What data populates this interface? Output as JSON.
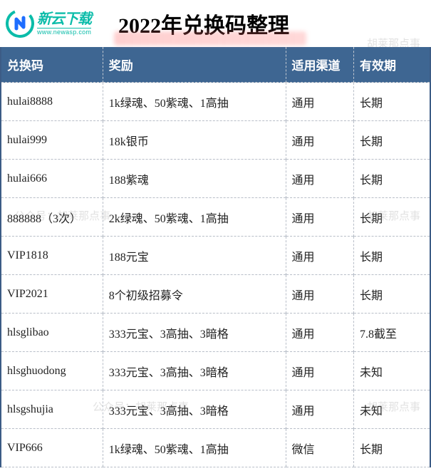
{
  "logo": {
    "cn_text": "新云下载",
    "url_text": "www.newasp.com",
    "circle_color": "#0bbca9",
    "accent_color": "#1d6dff"
  },
  "title": "2022年兑换码整理",
  "table": {
    "header_bg": "#3e6692",
    "header_fg": "#ffffff",
    "columns": {
      "code": "兑换码",
      "reward": "奖励",
      "channel": "适用渠道",
      "validity": "有效期"
    },
    "rows": [
      {
        "code": "hulai8888",
        "reward": "1k绿魂、50紫魂、1高抽",
        "channel": "通用",
        "validity": "长期"
      },
      {
        "code": "hulai999",
        "reward": "18k银币",
        "channel": "通用",
        "validity": "长期"
      },
      {
        "code": "hulai666",
        "reward": "188紫魂",
        "channel": "通用",
        "validity": "长期"
      },
      {
        "code": "888888（3次）",
        "reward": "2k绿魂、50紫魂、1高抽",
        "channel": "通用",
        "validity": "长期"
      },
      {
        "code": "VIP1818",
        "reward": "188元宝",
        "channel": "通用",
        "validity": "长期"
      },
      {
        "code": "VIP2021",
        "reward": "8个初级招募令",
        "channel": "通用",
        "validity": "长期"
      },
      {
        "code": "hlsglibao",
        "reward": "333元宝、3高抽、3暗格",
        "channel": "通用",
        "validity": "7.8截至"
      },
      {
        "code": "hlsghuodong",
        "reward": "333元宝、3高抽、3暗格",
        "channel": "通用",
        "validity": "未知"
      },
      {
        "code": "hlsgshujia",
        "reward": "333元宝、3高抽、3暗格",
        "channel": "通用",
        "validity": "未知"
      },
      {
        "code": "VIP666",
        "reward": "1k绿魂、50紫魂、1高抽",
        "channel": "微信",
        "validity": "长期"
      }
    ]
  },
  "watermarks": {
    "text": "公众号：胡莱那点事",
    "short": "胡莱那点事"
  }
}
